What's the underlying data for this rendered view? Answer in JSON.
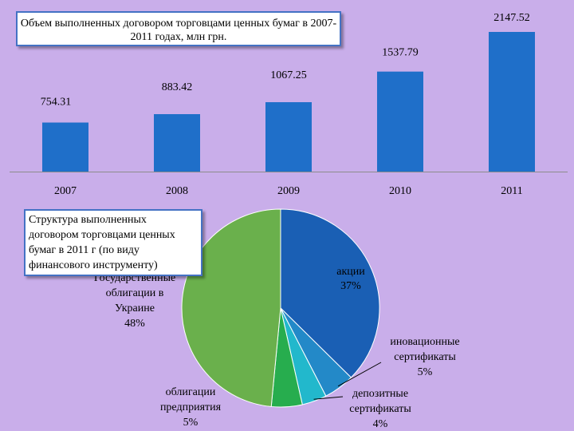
{
  "chart_data": [
    {
      "type": "bar",
      "title": "Объем выполненных договором торговцами ценных бумаг в 2007-2011 годах, млн грн.",
      "categories": [
        "2007",
        "2008",
        "2009",
        "2010",
        "2011"
      ],
      "values": [
        754.31,
        883.42,
        1067.25,
        1537.79,
        2147.52
      ],
      "value_labels": [
        "754.31",
        "883.42",
        "1067.25",
        "1537.79",
        "2147.52"
      ],
      "ylim": [
        0,
        2147.52
      ],
      "grid": false,
      "colors": {
        "bar": "#1f6fc9"
      }
    },
    {
      "type": "pie",
      "title": "Структура выполненных договором торговцами ценных бумаг в 2011 г (по виду финансового инструменту)",
      "slices": [
        {
          "label": "акции",
          "pct_label": "37%",
          "value": 37,
          "color": "#1a5fb4"
        },
        {
          "label": "иновационные сертификаты",
          "pct_label": "5%",
          "value": 5,
          "color": "#2389c8"
        },
        {
          "label": "депозитные сертификаты",
          "pct_label": "4%",
          "value": 4,
          "color": "#22b8cc"
        },
        {
          "label": "облигации предприятия",
          "pct_label": "5%",
          "value": 5,
          "color": "#27ad4e"
        },
        {
          "label": "Государственные облигации в Украине",
          "pct_label": "48%",
          "value": 48,
          "color": "#6ab04c"
        }
      ]
    }
  ]
}
